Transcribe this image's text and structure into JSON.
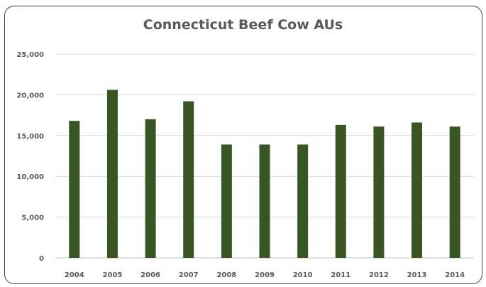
{
  "chart_data": {
    "type": "bar",
    "title": "Connecticut Beef Cow AUs",
    "xlabel": "",
    "ylabel": "",
    "categories": [
      "2004",
      "2005",
      "2006",
      "2007",
      "2008",
      "2009",
      "2010",
      "2011",
      "2012",
      "2013",
      "2014"
    ],
    "values": [
      16800,
      20600,
      17000,
      19200,
      13900,
      13900,
      13900,
      16300,
      16100,
      16600,
      16100
    ],
    "ylim": [
      0,
      25000
    ],
    "yticks": [
      0,
      5000,
      10000,
      15000,
      20000,
      25000
    ],
    "ytick_labels": [
      "0",
      "5,000",
      "10,000",
      "15,000",
      "20,000",
      "25,000"
    ],
    "grid": true,
    "legend": "none",
    "bar_color": "#375623",
    "grid_color": "#d9d9d9"
  }
}
